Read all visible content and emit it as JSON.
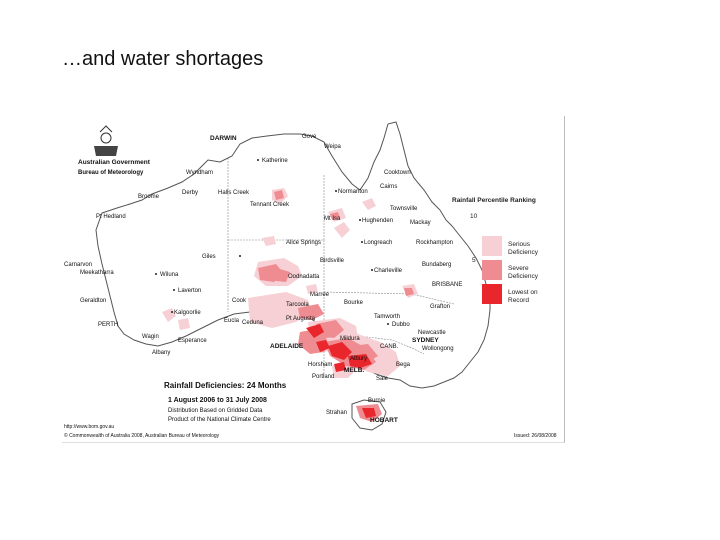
{
  "slide": {
    "title": "…and water shortages"
  },
  "map": {
    "agency": {
      "line1": "Australian Government",
      "line2": "Bureau of Meteorology"
    },
    "legend": {
      "title": "Rainfall Percentile Ranking",
      "ticks": [
        "10",
        "5"
      ],
      "items": [
        {
          "label1": "Serious",
          "label2": "Deficiency",
          "color": "#f6d0d4"
        },
        {
          "label1": "Severe",
          "label2": "Deficiency",
          "color": "#ef8c92"
        },
        {
          "label1": "Lowest on",
          "label2": "Record",
          "color": "#e8262b"
        }
      ]
    },
    "caption": {
      "title": "Rainfall Deficiencies: 24 Months",
      "period": "1 August 2006 to 31 July 2008",
      "line3": "Distribution Based on Gridded Data",
      "line4": "Product of the National Climate Centre"
    },
    "footer": {
      "url": "http://www.bom.gov.au",
      "copyright": "© Commonwealth of Australia 2008, Australian Bureau of Meteorology",
      "issued": "Issued: 26/08/2008"
    },
    "places": {
      "darwin": "DARWIN",
      "gove": "Gove",
      "weipa": "Weipa",
      "katherine": "Katherine",
      "wyndham": "Wyndham",
      "cooktown": "Cooktown",
      "cairns": "Cairns",
      "normanton": "Normanton",
      "derby": "Derby",
      "broome": "Broome",
      "halls_creek": "Halls Creek",
      "tennant_creek": "Tennant Creek",
      "townsville": "Townsville",
      "port_hedland": "Pt Hedland",
      "mt_isa": "Mt Isa",
      "hughenden": "Hughenden",
      "mackay": "Mackay",
      "giles": "Giles",
      "alice_springs": "Alice Springs",
      "longreach": "Longreach",
      "rockhampton": "Rockhampton",
      "carnarvon": "Carnarvon",
      "meekatharra": "Meekatharra",
      "wiluna": "Wiluna",
      "birdsville": "Birdsville",
      "charleville": "Charleville",
      "bundaberg": "Bundaberg",
      "oodnadatta": "Oodnadatta",
      "brisbane": "BRISBANE",
      "laverton": "Laverton",
      "geraldton": "Geraldton",
      "cook": "Cook",
      "marree": "Marree",
      "bourke": "Bourke",
      "grafton": "Grafton",
      "kalgoorlie": "Kalgoorlie",
      "tarcoola": "Tarcoola",
      "tamworth": "Tamworth",
      "perth": "PERTH",
      "eucla": "Eucla",
      "ceduna": "Ceduna",
      "pt_augusta": "Pt Augusta",
      "dubbo": "Dubbo",
      "wagin": "Wagin",
      "esperance": "Esperance",
      "mildura": "Mildura",
      "newcastle": "Newcastle",
      "sydney": "SYDNEY",
      "wollongong": "Wollongong",
      "albany": "Albany",
      "adelaide": "ADELAIDE",
      "canberra": "CANB.",
      "albury": "Albury",
      "horsham": "Horsham",
      "bega": "Bega",
      "melbourne": "MELB.",
      "portland": "Portland",
      "sale": "Sale",
      "burnie": "Burnie",
      "strahan": "Strahan",
      "hobart": "HOBART"
    }
  }
}
